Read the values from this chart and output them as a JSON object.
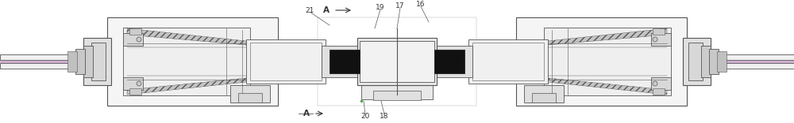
{
  "fig_width": 10.0,
  "fig_height": 1.56,
  "dpi": 100,
  "bg_color": "#ffffff",
  "lc": "#555555",
  "lc_dark": "#222222",
  "purple": "#bb88bb",
  "green": "#55aa55",
  "gray_light": "#e8e8e8",
  "gray_med": "#d0d0d0",
  "gray_dark": "#aaaaaa",
  "black_fill": "#111111",
  "hatch_gray": "#c4c4c4"
}
